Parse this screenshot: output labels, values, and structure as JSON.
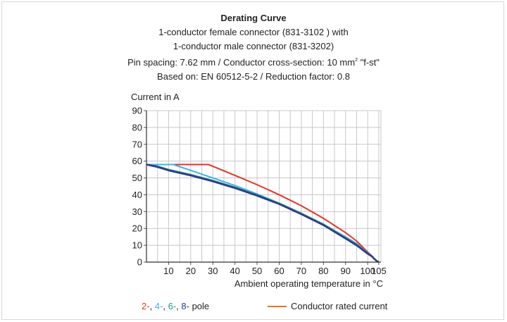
{
  "header": {
    "title": "Derating Curve",
    "line1": "1-conductor female connector (831-3102 ) with",
    "line2": "1-conductor male connector (831-3202)",
    "line3_a": "Pin spacing: 7.62 mm / Conductor cross-section: 10 mm",
    "line3_sup": "2",
    "line3_b": " \"f-st\"",
    "line4": "Based on: EN 60512-5-2 / Reduction factor: 0.8"
  },
  "legend": {
    "poles": [
      {
        "text": "2-",
        "color": "#e8322a"
      },
      {
        "text": ", ",
        "color": "#222222"
      },
      {
        "text": "4-",
        "color": "#3cb4e6"
      },
      {
        "text": ", ",
        "color": "#222222"
      },
      {
        "text": "6-",
        "color": "#1f9c8c"
      },
      {
        "text": ", ",
        "color": "#222222"
      },
      {
        "text": "8-",
        "color": "#2d3a8c"
      },
      {
        "text": " pole",
        "color": "#222222"
      }
    ],
    "rated_label": "Conductor rated current"
  },
  "chart_data": {
    "type": "line",
    "ylabel": "Current in A",
    "xlabel": "Ambient operating temperature in °C",
    "xlim": [
      0,
      106
    ],
    "ylim": [
      0,
      90
    ],
    "xticks": [
      10,
      20,
      30,
      40,
      50,
      60,
      70,
      80,
      90,
      100,
      105
    ],
    "yticks": [
      0,
      10,
      20,
      30,
      40,
      50,
      60,
      70,
      80,
      90
    ],
    "grid": true,
    "rated_current": {
      "color": "#e8721c",
      "x": [
        0,
        28
      ],
      "y": [
        58,
        58
      ]
    },
    "series": [
      {
        "name": "2-",
        "color": "#e8322a",
        "x": [
          0,
          28,
          40,
          50,
          60,
          70,
          80,
          90,
          95,
          100,
          102,
          103,
          104,
          105
        ],
        "y": [
          58,
          58,
          51.5,
          46,
          40,
          33.5,
          26,
          17.5,
          12.5,
          6,
          3.5,
          2,
          0.8,
          0
        ]
      },
      {
        "name": "4-",
        "color": "#3cb4e6",
        "x": [
          0,
          12,
          20,
          30,
          40,
          50,
          60,
          70,
          80,
          90,
          95,
          100,
          102,
          103,
          104,
          105
        ],
        "y": [
          58,
          58,
          54.5,
          50,
          45.5,
          40.5,
          35,
          29,
          22.5,
          15,
          11,
          5.5,
          3.5,
          2,
          0.8,
          0
        ]
      },
      {
        "name": "6-",
        "color": "#1f9c8c",
        "x": [
          0,
          5,
          10,
          20,
          30,
          40,
          50,
          60,
          70,
          80,
          90,
          95,
          100,
          102,
          103,
          104,
          105
        ],
        "y": [
          58,
          57,
          55,
          52,
          48.5,
          44.5,
          40,
          35,
          29,
          22.5,
          14.5,
          10.5,
          5.5,
          3.5,
          2,
          0.8,
          0
        ]
      },
      {
        "name": "8-",
        "color": "#2d3a8c",
        "x": [
          0,
          5,
          10,
          20,
          30,
          40,
          50,
          60,
          70,
          80,
          90,
          95,
          100,
          102,
          103,
          104,
          105
        ],
        "y": [
          58,
          56.5,
          54.5,
          51.5,
          48,
          44,
          39.5,
          34.5,
          28.5,
          22,
          14,
          10,
          5,
          3.3,
          1.9,
          0.7,
          0
        ]
      }
    ]
  }
}
